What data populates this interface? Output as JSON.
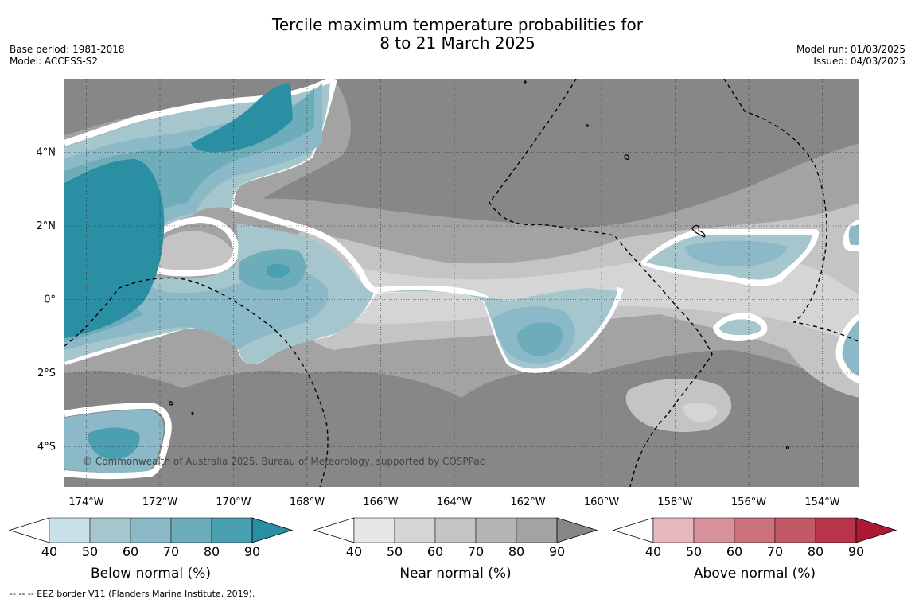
{
  "title": {
    "line1": "Tercile maximum temperature probabilities for",
    "line2": "8 to 21 March 2025"
  },
  "meta_left": {
    "base_period": "Base period: 1981-2018",
    "model": "Model: ACCESS-S2"
  },
  "meta_right": {
    "model_run": "Model run: 01/03/2025",
    "issued": "Issued: 04/03/2025"
  },
  "map": {
    "lat_labels": [
      "4°N",
      "2°N",
      "0°",
      "2°S",
      "4°S"
    ],
    "lat_values": [
      4,
      2,
      0,
      -2,
      -4
    ],
    "lon_labels": [
      "174°W",
      "172°W",
      "170°W",
      "168°W",
      "166°W",
      "164°W",
      "162°W",
      "160°W",
      "158°W",
      "156°W",
      "154°W"
    ],
    "lon_values": [
      -174,
      -172,
      -170,
      -168,
      -166,
      -164,
      -162,
      -160,
      -158,
      -156,
      -154
    ],
    "copyright": "© Commonwealth of Australia 2025, Bureau of Meteorology, supported by COSPPac"
  },
  "colorbars": [
    {
      "name": "below",
      "title": "Below normal (%)",
      "ticks": [
        "40",
        "50",
        "60",
        "70",
        "80",
        "90"
      ],
      "colors": [
        "#ffffff",
        "#c9e2e9",
        "#a6c6cd",
        "#8cb9c7",
        "#6cadb9",
        "#4a9fb1",
        "#2b8fa4"
      ]
    },
    {
      "name": "near",
      "title": "Near normal (%)",
      "ticks": [
        "40",
        "50",
        "60",
        "70",
        "80",
        "90"
      ],
      "colors": [
        "#ffffff",
        "#e7e7e7",
        "#d5d5d5",
        "#c4c4c4",
        "#b4b4b4",
        "#a3a3a3",
        "#878787"
      ]
    },
    {
      "name": "above",
      "title": "Above normal (%)",
      "ticks": [
        "40",
        "50",
        "60",
        "70",
        "80",
        "90"
      ],
      "colors": [
        "#ffffff",
        "#e4b8bd",
        "#d7929b",
        "#cc727d",
        "#c25967",
        "#b8344a",
        "#aa1a35"
      ]
    }
  ],
  "footnote": "--  --  -- EEZ border V11 (Flanders Marine Institute, 2019)."
}
